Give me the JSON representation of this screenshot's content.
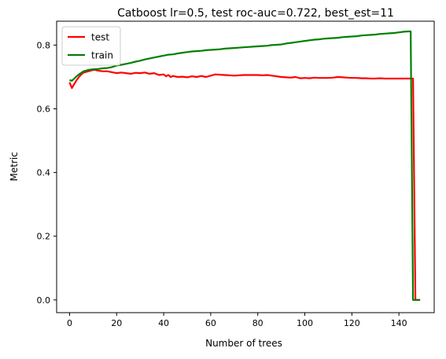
{
  "chart_data": {
    "type": "line",
    "title": "Catboost lr=0.5, test roc-auc=0.722, best_est=11",
    "xlabel": "Number of trees",
    "ylabel": "Metric",
    "xlim": [
      -5.5,
      155
    ],
    "ylim": [
      -0.04,
      0.875
    ],
    "xticks": [
      0,
      20,
      40,
      60,
      80,
      100,
      120,
      140
    ],
    "yticks": [
      0.0,
      0.2,
      0.4,
      0.6,
      0.8
    ],
    "ytick_labels": [
      "0.0",
      "0.2",
      "0.4",
      "0.6",
      "0.8"
    ],
    "grid": false,
    "legend_position": "top-left",
    "series": [
      {
        "name": "test",
        "color": "#ff0000",
        "x": [
          0,
          1,
          2,
          3,
          4,
          5,
          6,
          7,
          8,
          9,
          10,
          11,
          12,
          14,
          16,
          18,
          20,
          22,
          24,
          26,
          28,
          30,
          32,
          34,
          36,
          38,
          40,
          41,
          42,
          43,
          44,
          46,
          48,
          50,
          52,
          54,
          56,
          58,
          60,
          62,
          64,
          66,
          68,
          70,
          72,
          74,
          76,
          78,
          80,
          82,
          84,
          86,
          88,
          90,
          92,
          94,
          96,
          98,
          100,
          102,
          104,
          106,
          108,
          110,
          112,
          114,
          116,
          118,
          120,
          122,
          124,
          126,
          128,
          130,
          132,
          134,
          136,
          138,
          140,
          142,
          144,
          145,
          146,
          147,
          148,
          149
        ],
        "y": [
          0.683,
          0.665,
          0.678,
          0.69,
          0.7,
          0.708,
          0.714,
          0.716,
          0.718,
          0.72,
          0.722,
          0.722,
          0.72,
          0.718,
          0.718,
          0.715,
          0.712,
          0.714,
          0.712,
          0.71,
          0.713,
          0.712,
          0.714,
          0.71,
          0.712,
          0.706,
          0.708,
          0.702,
          0.706,
          0.7,
          0.703,
          0.7,
          0.701,
          0.699,
          0.702,
          0.7,
          0.703,
          0.7,
          0.704,
          0.708,
          0.707,
          0.706,
          0.705,
          0.704,
          0.705,
          0.706,
          0.706,
          0.706,
          0.706,
          0.705,
          0.706,
          0.704,
          0.702,
          0.7,
          0.699,
          0.698,
          0.7,
          0.696,
          0.697,
          0.696,
          0.698,
          0.697,
          0.697,
          0.697,
          0.698,
          0.7,
          0.699,
          0.698,
          0.697,
          0.697,
          0.696,
          0.696,
          0.695,
          0.695,
          0.696,
          0.695,
          0.695,
          0.695,
          0.695,
          0.695,
          0.695,
          0.695,
          0.695,
          0.0,
          0.0,
          0.0
        ]
      },
      {
        "name": "train",
        "color": "#008000",
        "x": [
          0,
          1,
          2,
          3,
          4,
          5,
          6,
          8,
          10,
          12,
          14,
          16,
          18,
          20,
          22,
          24,
          26,
          28,
          30,
          32,
          34,
          36,
          38,
          40,
          42,
          44,
          46,
          48,
          50,
          52,
          54,
          56,
          58,
          60,
          62,
          64,
          66,
          68,
          70,
          72,
          74,
          76,
          78,
          80,
          82,
          84,
          86,
          88,
          90,
          92,
          94,
          96,
          98,
          100,
          102,
          104,
          106,
          108,
          110,
          112,
          114,
          116,
          118,
          120,
          122,
          124,
          126,
          128,
          130,
          132,
          134,
          136,
          138,
          140,
          142,
          144,
          145,
          146,
          147,
          148,
          149
        ],
        "y": [
          0.69,
          0.688,
          0.695,
          0.702,
          0.708,
          0.713,
          0.718,
          0.722,
          0.724,
          0.725,
          0.727,
          0.728,
          0.731,
          0.736,
          0.738,
          0.741,
          0.744,
          0.748,
          0.751,
          0.755,
          0.758,
          0.761,
          0.764,
          0.767,
          0.77,
          0.771,
          0.774,
          0.776,
          0.778,
          0.78,
          0.781,
          0.782,
          0.784,
          0.785,
          0.786,
          0.787,
          0.789,
          0.79,
          0.791,
          0.792,
          0.793,
          0.794,
          0.795,
          0.796,
          0.797,
          0.798,
          0.8,
          0.801,
          0.802,
          0.805,
          0.807,
          0.809,
          0.811,
          0.813,
          0.815,
          0.817,
          0.818,
          0.82,
          0.821,
          0.822,
          0.823,
          0.825,
          0.826,
          0.827,
          0.828,
          0.83,
          0.831,
          0.832,
          0.833,
          0.835,
          0.836,
          0.837,
          0.838,
          0.84,
          0.842,
          0.843,
          0.843,
          0.0,
          0.0,
          0.0,
          0.0
        ]
      }
    ]
  }
}
